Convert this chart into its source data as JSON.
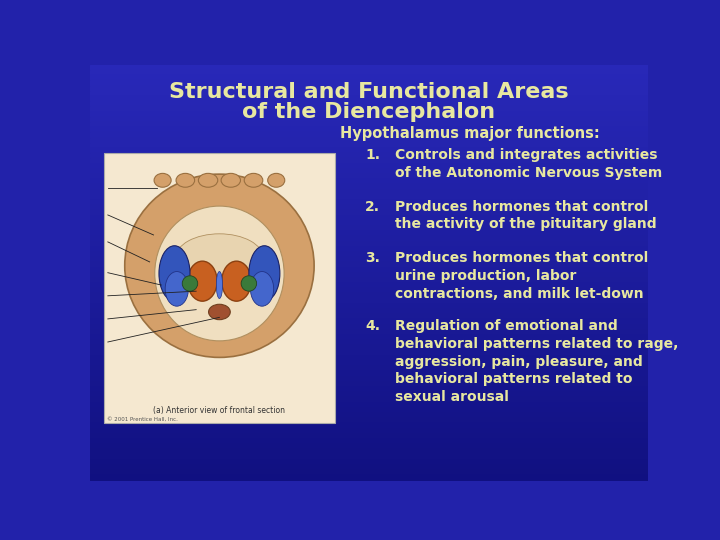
{
  "title_line1": "Structural and Functional Areas",
  "title_line2": "of the Diencephalon",
  "subtitle": "Hypothalamus major functions:",
  "items": [
    "Controls and integrates activities\nof the Autonomic Nervous System",
    "Produces hormones that control\nthe activity of the pituitary gland",
    "Produces hormones that control\nurine production, labor\ncontractions, and milk let-down",
    "Regulation of emotional and\nbehavioral patterns related to rage,\naggression, pain, pleasure, and\nbehavioral patterns related to\nsexual arousal"
  ],
  "bg_color": "#2222aa",
  "title_color": "#e8e8a0",
  "subtitle_color": "#e8e8a0",
  "text_color": "#e8e8a0",
  "title_fontsize": 16,
  "subtitle_fontsize": 10.5,
  "item_fontsize": 10,
  "figsize": [
    7.2,
    5.4
  ],
  "dpi": 100
}
